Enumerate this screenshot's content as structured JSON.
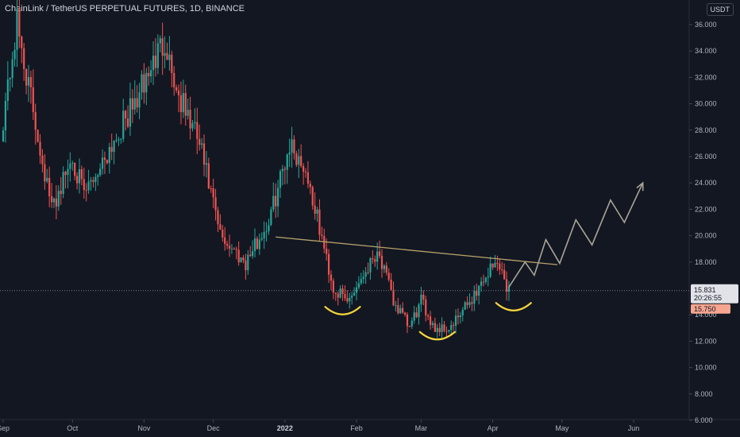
{
  "header": {
    "title": "ChainLink / TetherUS PERPETUAL FUTURES, 1D, BINANCE",
    "currency": "USDT"
  },
  "price_axis": {
    "ticks": [
      "36.000",
      "34.000",
      "32.000",
      "30.000",
      "28.000",
      "26.000",
      "24.000",
      "22.000",
      "20.000",
      "18.000",
      "14.000",
      "12.000",
      "10.000",
      "8.000",
      "6.000"
    ],
    "current_price": "15.831",
    "countdown": "20:26:55",
    "prev_close": "15.750"
  },
  "time_axis": {
    "labels": [
      {
        "text": "Sep",
        "bold": false
      },
      {
        "text": "Oct",
        "bold": false
      },
      {
        "text": "Nov",
        "bold": false
      },
      {
        "text": "Dec",
        "bold": false
      },
      {
        "text": "2022",
        "bold": true
      },
      {
        "text": "Feb",
        "bold": false
      },
      {
        "text": "Mar",
        "bold": false
      },
      {
        "text": "Apr",
        "bold": false
      },
      {
        "text": "May",
        "bold": false
      },
      {
        "text": "Jun",
        "bold": false
      }
    ]
  },
  "colors": {
    "up": "#26a69a",
    "down": "#ef5350",
    "trendline": "#b5a26a",
    "projection": "#a8a496",
    "annotation": "#f5d63d",
    "price_label_bg": "#e1e3e8",
    "prev_label_bg": "#f5a590"
  },
  "chart_data": {
    "type": "candlestick",
    "x_start": "2021-09-01",
    "x_end": "2022-06-01",
    "y_range": [
      6,
      37
    ],
    "current_price": 15.831,
    "key_points": [
      {
        "date": "2021-09-01",
        "price": 29
      },
      {
        "date": "2021-09-07",
        "price": 36
      },
      {
        "date": "2021-09-22",
        "price": 22
      },
      {
        "date": "2021-10-01",
        "price": 26
      },
      {
        "date": "2021-10-06",
        "price": 23
      },
      {
        "date": "2021-10-18",
        "price": 27
      },
      {
        "date": "2021-10-28",
        "price": 30
      },
      {
        "date": "2021-11-10",
        "price": 35
      },
      {
        "date": "2021-11-15",
        "price": 31
      },
      {
        "date": "2021-11-25",
        "price": 27
      },
      {
        "date": "2021-12-04",
        "price": 20
      },
      {
        "date": "2021-12-15",
        "price": 18
      },
      {
        "date": "2021-12-25",
        "price": 21
      },
      {
        "date": "2022-01-03",
        "price": 27
      },
      {
        "date": "2022-01-10",
        "price": 25
      },
      {
        "date": "2022-01-22",
        "price": 16
      },
      {
        "date": "2022-01-28",
        "price": 15
      },
      {
        "date": "2022-02-07",
        "price": 18
      },
      {
        "date": "2022-02-10",
        "price": 19
      },
      {
        "date": "2022-02-17",
        "price": 15
      },
      {
        "date": "2022-02-24",
        "price": 13
      },
      {
        "date": "2022-03-01",
        "price": 15
      },
      {
        "date": "2022-03-07",
        "price": 13
      },
      {
        "date": "2022-03-14",
        "price": 13
      },
      {
        "date": "2022-03-22",
        "price": 15
      },
      {
        "date": "2022-03-31",
        "price": 17.5
      },
      {
        "date": "2022-04-04",
        "price": 18
      },
      {
        "date": "2022-04-06",
        "price": 16.5
      },
      {
        "date": "2022-04-08",
        "price": 15.8
      }
    ],
    "drawings": {
      "neckline": [
        {
          "date": "2021-12-28",
          "price": 19.9
        },
        {
          "date": "2022-04-29",
          "price": 17.8
        }
      ],
      "projection_path": [
        {
          "date": "2022-04-08",
          "price": 16.1
        },
        {
          "date": "2022-04-15",
          "price": 18
        },
        {
          "date": "2022-04-19",
          "price": 17
        },
        {
          "date": "2022-04-24",
          "price": 19.7
        },
        {
          "date": "2022-04-30",
          "price": 17.9
        },
        {
          "date": "2022-05-07",
          "price": 21.2
        },
        {
          "date": "2022-05-14",
          "price": 19.3
        },
        {
          "date": "2022-05-22",
          "price": 22.7
        },
        {
          "date": "2022-05-28",
          "price": 21
        },
        {
          "date": "2022-06-05",
          "price": 24
        }
      ],
      "shoulders": [
        {
          "date": "2022-01-26",
          "price": 14.3
        },
        {
          "date": "2022-03-08",
          "price": 12.4
        },
        {
          "date": "2022-04-10",
          "price": 14.6
        }
      ]
    }
  }
}
